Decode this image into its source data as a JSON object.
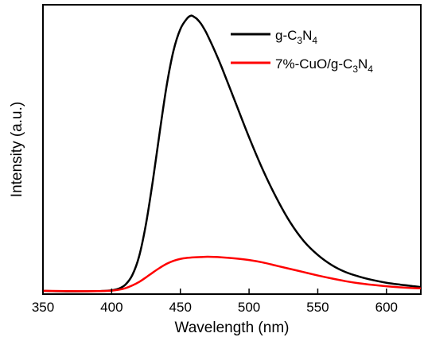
{
  "chart_data": {
    "type": "line",
    "title": "",
    "xlabel": "Wavelength (nm)",
    "ylabel": "Intensity (a.u.)",
    "xlim": [
      350,
      625
    ],
    "ylim": [
      0,
      1.07
    ],
    "x_ticks": [
      350,
      400,
      450,
      500,
      550,
      600
    ],
    "x_tick_labels": [
      "350",
      "400",
      "450",
      "500",
      "550",
      "600"
    ],
    "y_ticks_labeled": false,
    "grid": false,
    "legend_position": "top-right",
    "series": [
      {
        "name_parts": [
          "g-C",
          "3",
          "N",
          "4"
        ],
        "color": "#000000",
        "x": [
          350,
          370,
          390,
          400,
          405,
          410,
          415,
          420,
          425,
          430,
          435,
          440,
          445,
          450,
          455,
          458,
          460,
          462,
          465,
          468,
          470,
          475,
          480,
          490,
          500,
          510,
          520,
          530,
          540,
          550,
          560,
          570,
          580,
          590,
          600,
          610,
          620,
          625
        ],
        "y": [
          0.012,
          0.01,
          0.011,
          0.014,
          0.02,
          0.035,
          0.07,
          0.14,
          0.26,
          0.42,
          0.6,
          0.77,
          0.9,
          0.98,
          1.02,
          1.03,
          1.025,
          1.018,
          1.0,
          0.975,
          0.955,
          0.9,
          0.84,
          0.71,
          0.58,
          0.46,
          0.355,
          0.265,
          0.195,
          0.145,
          0.108,
          0.082,
          0.065,
          0.052,
          0.042,
          0.035,
          0.029,
          0.026
        ]
      },
      {
        "name_parts": [
          "7%-CuO/g-C",
          "3",
          "N",
          "4"
        ],
        "color": "#ff0000",
        "x": [
          350,
          370,
          390,
          400,
          405,
          410,
          415,
          420,
          425,
          430,
          435,
          440,
          445,
          450,
          455,
          460,
          465,
          470,
          480,
          490,
          500,
          510,
          520,
          530,
          540,
          550,
          560,
          570,
          580,
          590,
          600,
          610,
          620,
          625
        ],
        "y": [
          0.012,
          0.011,
          0.011,
          0.013,
          0.016,
          0.022,
          0.032,
          0.045,
          0.062,
          0.08,
          0.097,
          0.112,
          0.123,
          0.13,
          0.134,
          0.136,
          0.137,
          0.138,
          0.136,
          0.132,
          0.126,
          0.117,
          0.105,
          0.093,
          0.081,
          0.069,
          0.058,
          0.048,
          0.04,
          0.034,
          0.029,
          0.025,
          0.022,
          0.021
        ]
      }
    ]
  }
}
